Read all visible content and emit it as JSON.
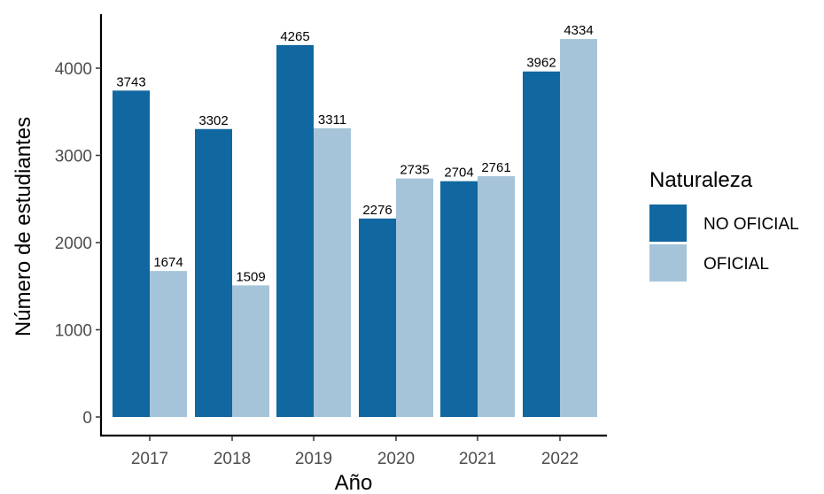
{
  "chart_data": {
    "type": "bar",
    "categories": [
      "2017",
      "2018",
      "2019",
      "2020",
      "2021",
      "2022"
    ],
    "series": [
      {
        "name": "NO OFICIAL",
        "color": "#1167a0",
        "values": [
          3743,
          3302,
          4265,
          2276,
          2704,
          3962
        ]
      },
      {
        "name": "OFICIAL",
        "color": "#a5c4d9",
        "values": [
          1674,
          1509,
          3311,
          2735,
          2761,
          4334
        ]
      }
    ],
    "title": "",
    "xlabel": "Año",
    "ylabel": "Número de estudiantes",
    "ylim": [
      0,
      4800
    ],
    "yticks": [
      0,
      1000,
      2000,
      3000,
      4000
    ],
    "grid": false,
    "legend": {
      "title": "Naturaleza",
      "placement": "right"
    }
  }
}
